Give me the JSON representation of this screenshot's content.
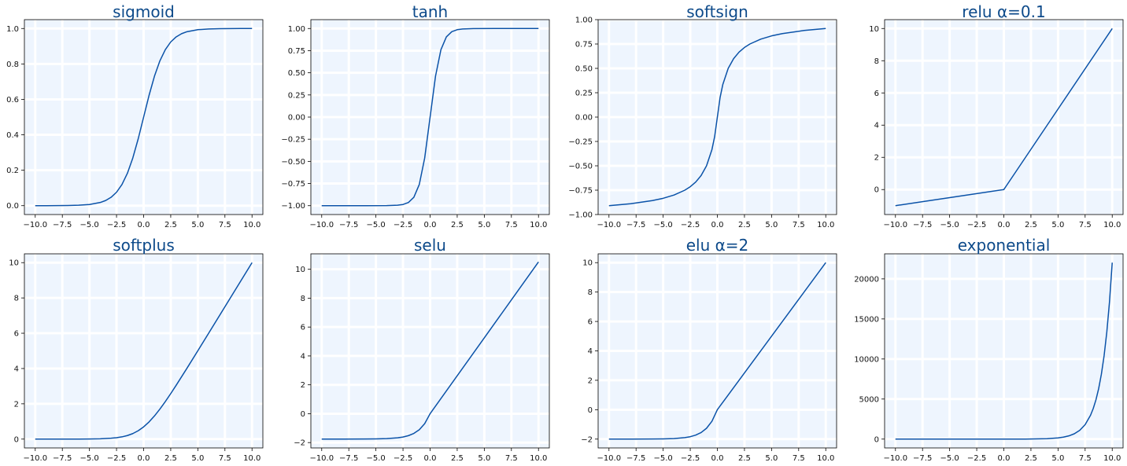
{
  "figure": {
    "line_color": "#0a52a8",
    "title_color": "#0d4a8a",
    "plot_background": "#eef5fe",
    "grid_color": "#ffffff"
  },
  "chart_data": [
    {
      "type": "line",
      "title": "sigmoid",
      "x": [
        -10,
        -9,
        -8,
        -7,
        -6,
        -5,
        -4,
        -3.5,
        -3,
        -2.5,
        -2,
        -1.5,
        -1,
        -0.5,
        0,
        0.5,
        1,
        1.5,
        2,
        2.5,
        3,
        3.5,
        4,
        5,
        6,
        7,
        8,
        9,
        10
      ],
      "values": [
        4.54e-05,
        0.000123,
        0.000335,
        0.000911,
        0.00247,
        0.00669,
        0.018,
        0.0293,
        0.0474,
        0.0759,
        0.1192,
        0.1824,
        0.2689,
        0.3775,
        0.5,
        0.6225,
        0.7311,
        0.8176,
        0.8808,
        0.9241,
        0.9526,
        0.9707,
        0.982,
        0.9933,
        0.9975,
        0.9991,
        0.9997,
        0.9999,
        1.0
      ],
      "xlim": [
        -11,
        11
      ],
      "ylim": [
        -0.05,
        1.05
      ],
      "xticks": [
        -10,
        -7.5,
        -5,
        -2.5,
        0,
        2.5,
        5,
        7.5,
        10
      ],
      "xtick_labels": [
        "−10.0",
        "−7.5",
        "−5.0",
        "−2.5",
        "0.0",
        "2.5",
        "5.0",
        "7.5",
        "10.0"
      ],
      "yticks": [
        0,
        0.2,
        0.4,
        0.6,
        0.8,
        1.0
      ],
      "ytick_labels": [
        "0.0",
        "0.2",
        "0.4",
        "0.6",
        "0.8",
        "1.0"
      ],
      "grid": true
    },
    {
      "type": "line",
      "title": "tanh",
      "x": [
        -10,
        -8,
        -6,
        -4,
        -3,
        -2.5,
        -2,
        -1.5,
        -1,
        -0.5,
        0,
        0.5,
        1,
        1.5,
        2,
        2.5,
        3,
        4,
        6,
        8,
        10
      ],
      "values": [
        -1.0,
        -1.0,
        -1.0,
        -0.9993,
        -0.9951,
        -0.9866,
        -0.964,
        -0.9051,
        -0.7616,
        -0.4621,
        0,
        0.4621,
        0.7616,
        0.9051,
        0.964,
        0.9866,
        0.9951,
        0.9993,
        1.0,
        1.0,
        1.0
      ],
      "xlim": [
        -11,
        11
      ],
      "ylim": [
        -1.1,
        1.1
      ],
      "xticks": [
        -10,
        -7.5,
        -5,
        -2.5,
        0,
        2.5,
        5,
        7.5,
        10
      ],
      "xtick_labels": [
        "−10.0",
        "−7.5",
        "−5.0",
        "−2.5",
        "0.0",
        "2.5",
        "5.0",
        "7.5",
        "10.0"
      ],
      "yticks": [
        -1,
        -0.75,
        -0.5,
        -0.25,
        0,
        0.25,
        0.5,
        0.75,
        1.0
      ],
      "ytick_labels": [
        "−1.00",
        "−0.75",
        "−0.50",
        "−0.25",
        "0.00",
        "0.25",
        "0.50",
        "0.75",
        "1.00"
      ],
      "grid": true
    },
    {
      "type": "line",
      "title": "softsign",
      "x": [
        -10,
        -8,
        -6,
        -5,
        -4,
        -3,
        -2.5,
        -2,
        -1.5,
        -1,
        -0.5,
        -0.25,
        0,
        0.25,
        0.5,
        1,
        1.5,
        2,
        2.5,
        3,
        4,
        5,
        6,
        8,
        10
      ],
      "values": [
        -0.9091,
        -0.8889,
        -0.8571,
        -0.8333,
        -0.8,
        -0.75,
        -0.7143,
        -0.6667,
        -0.6,
        -0.5,
        -0.3333,
        -0.2,
        0,
        0.2,
        0.3333,
        0.5,
        0.6,
        0.6667,
        0.7143,
        0.75,
        0.8,
        0.8333,
        0.8571,
        0.8889,
        0.9091
      ],
      "xlim": [
        -11,
        11
      ],
      "ylim": [
        -1.0,
        1.0
      ],
      "xticks": [
        -10,
        -7.5,
        -5,
        -2.5,
        0,
        2.5,
        5,
        7.5,
        10
      ],
      "xtick_labels": [
        "−10.0",
        "−7.5",
        "−5.0",
        "−2.5",
        "0.0",
        "2.5",
        "5.0",
        "7.5",
        "10.0"
      ],
      "yticks": [
        -1,
        -0.75,
        -0.5,
        -0.25,
        0,
        0.25,
        0.5,
        0.75,
        1.0
      ],
      "ytick_labels": [
        "−1.00",
        "−0.75",
        "−0.50",
        "−0.25",
        "0.00",
        "0.25",
        "0.50",
        "0.75",
        "1.00"
      ],
      "grid": true
    },
    {
      "type": "line",
      "title": "relu α=0.1",
      "x": [
        -10,
        -5,
        0,
        0.2,
        5,
        10
      ],
      "values": [
        -1.0,
        -0.5,
        0,
        0.2,
        5,
        10
      ],
      "xlim": [
        -11,
        11
      ],
      "ylim": [
        -1.55,
        10.55
      ],
      "xticks": [
        -10,
        -7.5,
        -5,
        -2.5,
        0,
        2.5,
        5,
        7.5,
        10
      ],
      "xtick_labels": [
        "−10.0",
        "−7.5",
        "−5.0",
        "−2.5",
        "0.0",
        "2.5",
        "5.0",
        "7.5",
        "10.0"
      ],
      "yticks": [
        0,
        2,
        4,
        6,
        8,
        10
      ],
      "ytick_labels": [
        "0",
        "2",
        "4",
        "6",
        "8",
        "10"
      ],
      "grid": true
    },
    {
      "type": "line",
      "title": "softplus",
      "x": [
        -10,
        -8,
        -6,
        -5,
        -4,
        -3,
        -2.5,
        -2,
        -1.5,
        -1,
        -0.5,
        0,
        0.5,
        1,
        1.5,
        2,
        2.5,
        3,
        4,
        5,
        6,
        8,
        10
      ],
      "values": [
        4.54e-05,
        0.000335,
        0.00248,
        0.00672,
        0.0181,
        0.0486,
        0.0789,
        0.1269,
        0.2014,
        0.3133,
        0.4741,
        0.6931,
        0.9741,
        1.3133,
        1.7014,
        2.1269,
        2.5789,
        3.0486,
        4.0181,
        5.0067,
        6.0025,
        8.0003,
        10.0
      ],
      "xlim": [
        -11,
        11
      ],
      "ylim": [
        -0.5,
        10.5
      ],
      "xticks": [
        -10,
        -7.5,
        -5,
        -2.5,
        0,
        2.5,
        5,
        7.5,
        10
      ],
      "xtick_labels": [
        "−10.0",
        "−7.5",
        "−5.0",
        "−2.5",
        "0.0",
        "2.5",
        "5.0",
        "7.5",
        "10.0"
      ],
      "yticks": [
        0,
        2,
        4,
        6,
        8,
        10
      ],
      "ytick_labels": [
        "0",
        "2",
        "4",
        "6",
        "8",
        "10"
      ],
      "grid": true
    },
    {
      "type": "line",
      "title": "selu",
      "x": [
        -10,
        -8,
        -6,
        -5,
        -4,
        -3,
        -2.5,
        -2,
        -1.5,
        -1,
        -0.5,
        0,
        0.2,
        5,
        10
      ],
      "values": [
        -1.758,
        -1.7575,
        -1.7537,
        -1.7463,
        -1.7262,
        -1.6706,
        -1.6138,
        -1.5202,
        -1.3659,
        -1.1113,
        -0.6918,
        0,
        0.2101,
        5.2535,
        10.507
      ],
      "xlim": [
        -11,
        11
      ],
      "ylim": [
        -2.37,
        11.07
      ],
      "xticks": [
        -10,
        -7.5,
        -5,
        -2.5,
        0,
        2.5,
        5,
        7.5,
        10
      ],
      "xtick_labels": [
        "−10.0",
        "−7.5",
        "−5.0",
        "−2.5",
        "0.0",
        "2.5",
        "5.0",
        "7.5",
        "10.0"
      ],
      "yticks": [
        -2,
        0,
        2,
        4,
        6,
        8,
        10
      ],
      "ytick_labels": [
        "−2",
        "0",
        "2",
        "4",
        "6",
        "8",
        "10"
      ],
      "grid": true
    },
    {
      "type": "line",
      "title": "elu α=2",
      "x": [
        -10,
        -8,
        -6,
        -5,
        -4,
        -3,
        -2.5,
        -2,
        -1.5,
        -1,
        -0.5,
        0,
        0.2,
        5,
        10
      ],
      "values": [
        -1.9999,
        -1.9993,
        -1.995,
        -1.9865,
        -1.9634,
        -1.9004,
        -1.8358,
        -1.7293,
        -1.5537,
        -1.2642,
        -0.7869,
        0,
        0.2,
        5,
        10
      ],
      "xlim": [
        -11,
        11
      ],
      "ylim": [
        -2.6,
        10.6
      ],
      "xticks": [
        -10,
        -7.5,
        -5,
        -2.5,
        0,
        2.5,
        5,
        7.5,
        10
      ],
      "xtick_labels": [
        "−10.0",
        "−7.5",
        "−5.0",
        "−2.5",
        "0.0",
        "2.5",
        "5.0",
        "7.5",
        "10.0"
      ],
      "yticks": [
        -2,
        0,
        2,
        4,
        6,
        8,
        10
      ],
      "ytick_labels": [
        "−2",
        "0",
        "2",
        "4",
        "6",
        "8",
        "10"
      ],
      "grid": true
    },
    {
      "type": "line",
      "title": "exponential",
      "x": [
        -10,
        -5,
        0,
        2,
        4,
        5,
        5.5,
        6,
        6.5,
        7,
        7.5,
        8,
        8.25,
        8.5,
        8.75,
        9,
        9.25,
        9.5,
        9.75,
        10
      ],
      "values": [
        4.54e-05,
        0.00674,
        1,
        7.389,
        54.6,
        148.4,
        244.7,
        403.4,
        665.1,
        1096.6,
        1808.0,
        2981.0,
        3827.6,
        4914.8,
        6310.7,
        8103.1,
        10404.6,
        13359.7,
        17154.2,
        22026.5
      ],
      "xlim": [
        -11,
        11
      ],
      "ylim": [
        -1101,
        23127
      ],
      "xticks": [
        -10,
        -7.5,
        -5,
        -2.5,
        0,
        2.5,
        5,
        7.5,
        10
      ],
      "xtick_labels": [
        "−10.0",
        "−7.5",
        "−5.0",
        "−2.5",
        "0.0",
        "2.5",
        "5.0",
        "7.5",
        "10.0"
      ],
      "yticks": [
        0,
        5000,
        10000,
        15000,
        20000
      ],
      "ytick_labels": [
        "0",
        "5000",
        "10000",
        "15000",
        "20000"
      ],
      "grid": true
    }
  ]
}
